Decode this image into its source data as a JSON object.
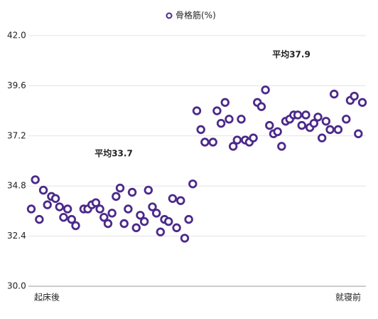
{
  "chart_data": {
    "type": "scatter",
    "legend": "top",
    "series": [
      {
        "name": "骨格筋(%)",
        "color": "#4b2a8a",
        "values": [
          33.7,
          35.1,
          33.2,
          34.6,
          33.9,
          34.3,
          34.2,
          33.8,
          33.3,
          33.7,
          33.2,
          32.9,
          null,
          33.7,
          33.7,
          33.9,
          34.0,
          33.7,
          33.3,
          33.0,
          33.5,
          34.3,
          34.7,
          33.0,
          33.7,
          34.5,
          32.8,
          33.4,
          33.1,
          34.6,
          33.8,
          33.5,
          32.6,
          33.2,
          33.1,
          34.2,
          32.8,
          34.1,
          32.3,
          33.2,
          34.9,
          38.4,
          37.5,
          36.9,
          null,
          36.9,
          38.4,
          37.8,
          38.8,
          38.0,
          36.7,
          37.0,
          38.0,
          37.0,
          36.9,
          37.1,
          38.8,
          38.6,
          39.4,
          37.7,
          37.3,
          37.4,
          36.7,
          37.9,
          38.0,
          38.2,
          38.2,
          37.7,
          38.2,
          37.6,
          37.8,
          38.1,
          37.1,
          37.9,
          37.5,
          39.2,
          37.5,
          null,
          38.0,
          38.9,
          39.1,
          37.3,
          38.8
        ]
      }
    ],
    "categories": [
      "起床後",
      null,
      null,
      null,
      null,
      null,
      null,
      null,
      null,
      null,
      null,
      null,
      null,
      null,
      null,
      null,
      null,
      null,
      null,
      null,
      null,
      null,
      null,
      null,
      null,
      null,
      null,
      null,
      null,
      null,
      null,
      null,
      null,
      null,
      null,
      null,
      null,
      null,
      null,
      null,
      null,
      null,
      null,
      null,
      null,
      null,
      null,
      null,
      null,
      null,
      null,
      null,
      null,
      null,
      null,
      null,
      null,
      null,
      null,
      null,
      null,
      null,
      null,
      null,
      null,
      null,
      null,
      null,
      null,
      null,
      null,
      null,
      null,
      null,
      null,
      null,
      null,
      null,
      null,
      null,
      null,
      null,
      "就寝前"
    ],
    "ylim": [
      30,
      42
    ],
    "yticks": [
      {
        "value": 30,
        "label": "30.0"
      },
      {
        "value": 32.4,
        "label": "32.4"
      },
      {
        "value": 34.8,
        "label": "34.8"
      },
      {
        "value": 37.2,
        "label": "37.2"
      },
      {
        "value": 39.6,
        "label": "39.6"
      },
      {
        "value": 42,
        "label": "42.0"
      }
    ],
    "grid": true,
    "annotations": [
      "平均33.7",
      "平均37.9"
    ],
    "annotation_color": "#2a4fd0"
  }
}
